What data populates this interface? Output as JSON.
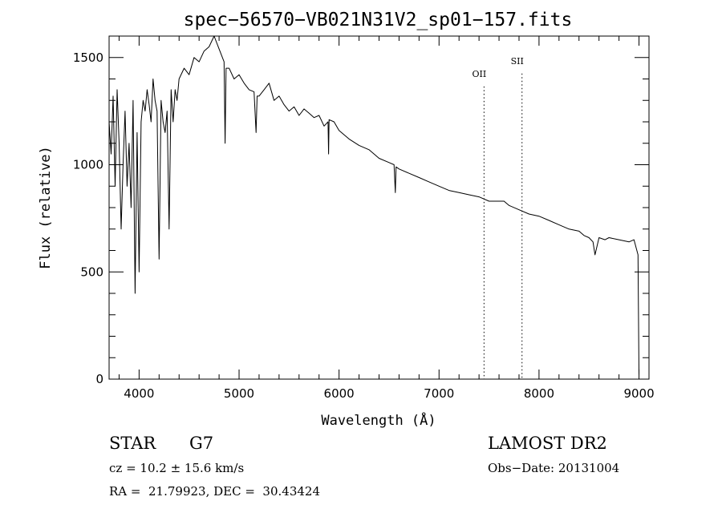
{
  "chart_data": {
    "type": "line",
    "title": "spec−56570−VB021N31V2_sp01−157.fits",
    "xlabel": "Wavelength (Å)",
    "ylabel": "Flux (relative)",
    "xlim": [
      3700,
      9100
    ],
    "ylim": [
      0,
      1600
    ],
    "x_ticks": [
      4000,
      5000,
      6000,
      7000,
      8000,
      9000
    ],
    "x_tick_labels": [
      "4000",
      "5000",
      "6000",
      "7000",
      "8000",
      "9000"
    ],
    "y_ticks": [
      0,
      500,
      1000,
      1500
    ],
    "y_tick_labels": [
      "0",
      "500",
      "1000",
      "1500"
    ],
    "grid": false,
    "legend": "none",
    "series": [
      {
        "name": "spectrum",
        "x": [
          3700,
          3720,
          3740,
          3760,
          3780,
          3800,
          3820,
          3840,
          3860,
          3880,
          3900,
          3920,
          3940,
          3960,
          3980,
          4000,
          4020,
          4040,
          4060,
          4080,
          4100,
          4120,
          4140,
          4160,
          4180,
          4200,
          4220,
          4240,
          4260,
          4280,
          4300,
          4320,
          4340,
          4360,
          4380,
          4400,
          4450,
          4500,
          4550,
          4600,
          4650,
          4700,
          4750,
          4800,
          4850,
          4860,
          4870,
          4900,
          4950,
          5000,
          5050,
          5100,
          5150,
          5170,
          5180,
          5200,
          5250,
          5300,
          5350,
          5400,
          5450,
          5500,
          5550,
          5600,
          5650,
          5700,
          5750,
          5800,
          5850,
          5890,
          5895,
          5900,
          5950,
          6000,
          6100,
          6200,
          6300,
          6400,
          6500,
          6550,
          6563,
          6570,
          6600,
          6700,
          6800,
          6900,
          7000,
          7100,
          7200,
          7300,
          7400,
          7500,
          7600,
          7650,
          7700,
          7800,
          7900,
          8000,
          8100,
          8200,
          8300,
          8400,
          8450,
          8500,
          8540,
          8560,
          8600,
          8660,
          8700,
          8800,
          8900,
          8950,
          8990,
          9000
        ],
        "y": [
          1200,
          1050,
          1320,
          900,
          1350,
          1100,
          700,
          1000,
          1250,
          900,
          1100,
          800,
          1300,
          400,
          1150,
          500,
          1200,
          1300,
          1250,
          1350,
          1280,
          1200,
          1400,
          1300,
          1250,
          560,
          1300,
          1200,
          1150,
          1250,
          700,
          1350,
          1200,
          1350,
          1300,
          1400,
          1450,
          1420,
          1500,
          1480,
          1530,
          1550,
          1600,
          1540,
          1480,
          1100,
          1450,
          1450,
          1400,
          1420,
          1380,
          1350,
          1340,
          1150,
          1320,
          1320,
          1350,
          1380,
          1300,
          1320,
          1280,
          1250,
          1270,
          1230,
          1260,
          1240,
          1220,
          1230,
          1180,
          1200,
          1050,
          1210,
          1200,
          1160,
          1120,
          1090,
          1070,
          1030,
          1010,
          1000,
          870,
          990,
          980,
          960,
          940,
          920,
          900,
          880,
          870,
          860,
          850,
          830,
          830,
          830,
          810,
          790,
          770,
          760,
          740,
          720,
          700,
          690,
          670,
          660,
          640,
          580,
          660,
          650,
          660,
          650,
          640,
          650,
          580,
          20
        ]
      }
    ],
    "annotations": [
      {
        "text": "OII",
        "x": 7450,
        "y_level": 1410
      },
      {
        "text": "SII",
        "x": 7830,
        "y_level": 1470
      }
    ]
  },
  "info": {
    "class": "STAR",
    "subclass": "G7",
    "survey": "LAMOST DR2",
    "cz": "cz = 10.2 ± 15.6 km/s",
    "obs_date": "Obs−Date: 20131004",
    "radec": "RA =  21.79923, DEC =  30.43424"
  }
}
